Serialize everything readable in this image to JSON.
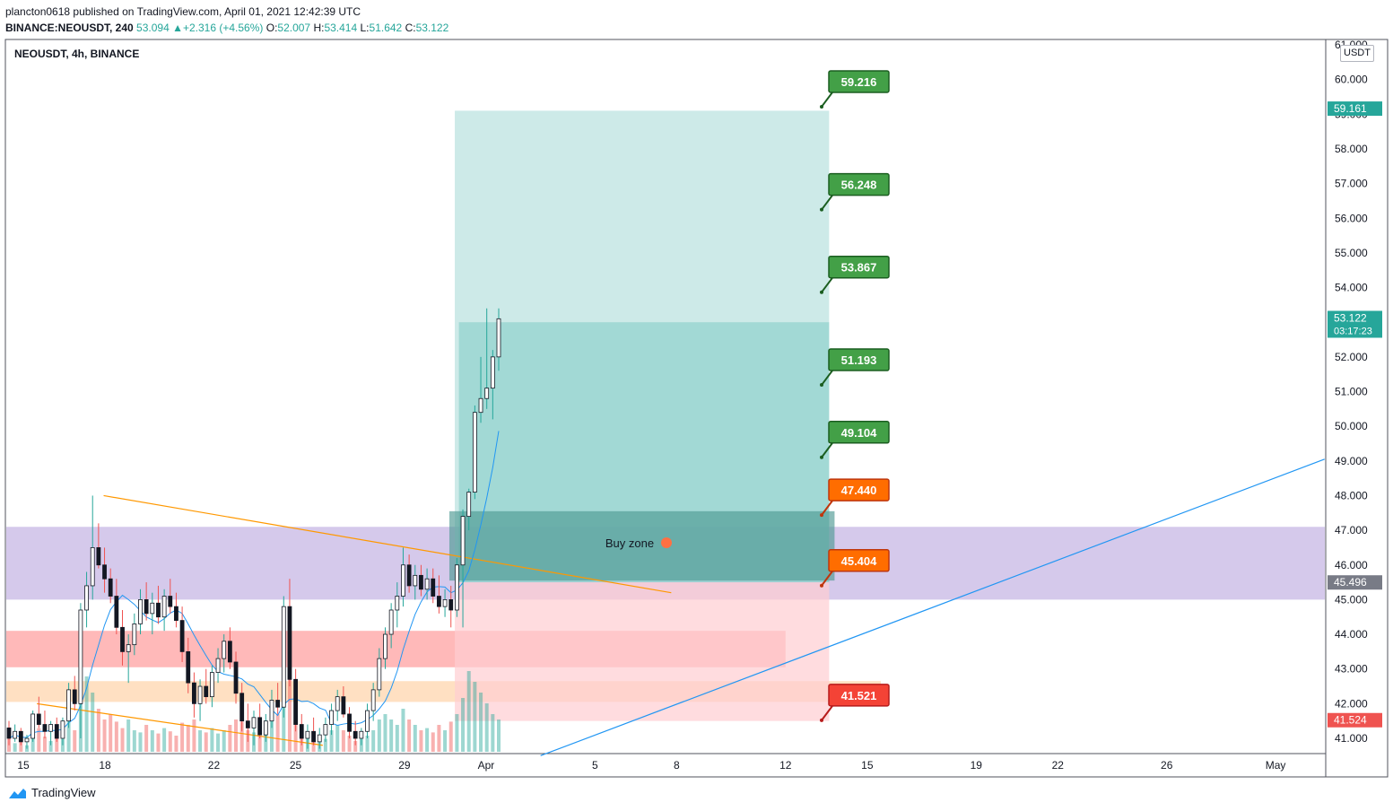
{
  "header": {
    "publisher_line": "plancton0618 published on TradingView.com, April 01, 2021 12:42:39 UTC",
    "symbol_interval": "BINANCE:NEOUSDT, 240",
    "last": "53.094",
    "change_arrow": "▲",
    "change": "+2.316 (+4.56%)",
    "o_label": "O:",
    "o": "52.007",
    "h_label": "H:",
    "h": "53.414",
    "l_label": "L:",
    "l": "51.642",
    "c_label": "C:",
    "c": "53.122"
  },
  "chart_title": "NEOUSDT, 4h, BINANCE",
  "currency": "USDT",
  "footer_brand": "TradingView",
  "chart_data": {
    "type": "candlestick",
    "symbol": "NEOUSDT",
    "interval": "4h",
    "exchange": "BINANCE",
    "ylim": [
      40.7,
      61.0
    ],
    "y_ticks": [
      "41.000",
      "42.000",
      "43.000",
      "44.000",
      "45.000",
      "46.000",
      "47.000",
      "48.000",
      "49.000",
      "50.000",
      "51.000",
      "52.000",
      "53.000",
      "54.000",
      "55.000",
      "56.000",
      "57.000",
      "58.000",
      "59.000",
      "60.000",
      "61.000"
    ],
    "x_ticks": [
      {
        "label": "15",
        "day": 15
      },
      {
        "label": "18",
        "day": 18
      },
      {
        "label": "22",
        "day": 22
      },
      {
        "label": "25",
        "day": 25
      },
      {
        "label": "29",
        "day": 29
      },
      {
        "label": "Apr",
        "day": 32
      },
      {
        "label": "5",
        "day": 36
      },
      {
        "label": "8",
        "day": 39
      },
      {
        "label": "12",
        "day": 43
      },
      {
        "label": "15",
        "day": 46
      },
      {
        "label": "19",
        "day": 50
      },
      {
        "label": "22",
        "day": 53
      },
      {
        "label": "26",
        "day": 57
      },
      {
        "label": "May",
        "day": 61
      }
    ],
    "price_badges": [
      {
        "value": "59.161",
        "price": 59.161,
        "color": "#26a69a"
      },
      {
        "value": "53.122",
        "countdown": "03:17:23",
        "price": 53.122,
        "color": "#26a69a"
      },
      {
        "value": "45.496",
        "price": 45.496,
        "color": "#787b86"
      },
      {
        "value": "41.524",
        "price": 41.524,
        "color": "#ef5350"
      }
    ],
    "targets": [
      {
        "value": "59.216",
        "price": 59.216,
        "color": "#43a047",
        "border": "#1b5e20"
      },
      {
        "value": "56.248",
        "price": 56.248,
        "color": "#43a047",
        "border": "#1b5e20"
      },
      {
        "value": "53.867",
        "price": 53.867,
        "color": "#43a047",
        "border": "#1b5e20"
      },
      {
        "value": "51.193",
        "price": 51.193,
        "color": "#43a047",
        "border": "#1b5e20"
      },
      {
        "value": "49.104",
        "price": 49.104,
        "color": "#43a047",
        "border": "#1b5e20"
      },
      {
        "value": "47.440",
        "price": 47.44,
        "color": "#ff6d00",
        "border": "#bf360c"
      },
      {
        "value": "45.404",
        "price": 45.404,
        "color": "#ff6d00",
        "border": "#bf360c"
      },
      {
        "value": "41.521",
        "price": 41.521,
        "color": "#f44336",
        "border": "#b71c1c"
      }
    ],
    "zones": [
      {
        "name": "purple-zone",
        "y1": 45.0,
        "y2": 47.1,
        "x1": 14,
        "x2": 63,
        "color": "#b39ddb",
        "opacity": 0.55
      },
      {
        "name": "red-zone",
        "y1": 43.05,
        "y2": 44.1,
        "x1": 14,
        "x2": 43,
        "color": "#ff8a8a",
        "opacity": 0.6
      },
      {
        "name": "orange-zone",
        "y1": 42.05,
        "y2": 42.65,
        "x1": 14,
        "x2": 46.5,
        "color": "#ffcc99",
        "opacity": 0.6
      },
      {
        "name": "target-zone-light",
        "y1": 45.5,
        "y2": 59.1,
        "x1": 30.85,
        "x2": 44.6,
        "color": "#b2dfdb",
        "opacity": 0.65
      },
      {
        "name": "target-zone-dark",
        "y1": 45.5,
        "y2": 53.0,
        "x1": 31.0,
        "x2": 44.6,
        "color": "#80cbc4",
        "opacity": 0.55
      },
      {
        "name": "buy-zone-box",
        "y1": 45.55,
        "y2": 47.55,
        "x1": 30.65,
        "x2": 44.8,
        "color": "#4f9a94",
        "opacity": 0.65
      },
      {
        "name": "stop-zone",
        "y1": 41.5,
        "y2": 45.5,
        "x1": 30.85,
        "x2": 44.6,
        "color": "#ffcdd2",
        "opacity": 0.7
      }
    ],
    "buy_zone_label": "Buy zone",
    "lines": [
      {
        "name": "orange-trendline",
        "x1": 17.95,
        "y1": 48.0,
        "x2": 38.8,
        "y2": 45.2,
        "color": "#ff9800"
      },
      {
        "name": "orange-lower-trendline",
        "x1": 15.5,
        "y1": 42.0,
        "x2": 26.0,
        "y2": 40.8,
        "color": "#ff9800"
      },
      {
        "name": "blue-trendline",
        "x1": 34.0,
        "y1": 40.5,
        "x2": 62.8,
        "y2": 49.05,
        "color": "#2196f3"
      }
    ],
    "candles": [
      {
        "o": 41.3,
        "h": 41.5,
        "l": 40.8,
        "c": 41.0
      },
      {
        "o": 41.0,
        "h": 41.4,
        "l": 40.9,
        "c": 41.2
      },
      {
        "o": 41.2,
        "h": 41.3,
        "l": 40.8,
        "c": 40.9
      },
      {
        "o": 40.9,
        "h": 41.1,
        "l": 40.7,
        "c": 41.0
      },
      {
        "o": 41.0,
        "h": 41.8,
        "l": 40.9,
        "c": 41.7
      },
      {
        "o": 41.7,
        "h": 42.2,
        "l": 41.3,
        "c": 41.4
      },
      {
        "o": 41.4,
        "h": 41.8,
        "l": 41.0,
        "c": 41.2
      },
      {
        "o": 41.2,
        "h": 41.5,
        "l": 40.8,
        "c": 41.4
      },
      {
        "o": 41.4,
        "h": 41.6,
        "l": 40.9,
        "c": 41.0
      },
      {
        "o": 41.0,
        "h": 41.6,
        "l": 40.8,
        "c": 41.5
      },
      {
        "o": 41.5,
        "h": 42.6,
        "l": 41.3,
        "c": 42.4
      },
      {
        "o": 42.4,
        "h": 42.8,
        "l": 41.8,
        "c": 42.0
      },
      {
        "o": 42.0,
        "h": 44.9,
        "l": 41.0,
        "c": 44.7
      },
      {
        "o": 44.7,
        "h": 45.8,
        "l": 44.2,
        "c": 45.4
      },
      {
        "o": 45.4,
        "h": 48.0,
        "l": 45.0,
        "c": 46.5
      },
      {
        "o": 46.5,
        "h": 47.2,
        "l": 45.9,
        "c": 46.0
      },
      {
        "o": 46.0,
        "h": 46.5,
        "l": 45.2,
        "c": 45.6
      },
      {
        "o": 45.6,
        "h": 45.9,
        "l": 44.9,
        "c": 45.1
      },
      {
        "o": 45.1,
        "h": 45.6,
        "l": 44.0,
        "c": 44.2
      },
      {
        "o": 44.2,
        "h": 44.7,
        "l": 43.1,
        "c": 43.5
      },
      {
        "o": 43.5,
        "h": 44.0,
        "l": 42.6,
        "c": 43.7
      },
      {
        "o": 43.7,
        "h": 44.6,
        "l": 43.4,
        "c": 44.3
      },
      {
        "o": 44.3,
        "h": 45.3,
        "l": 44.0,
        "c": 45.0
      },
      {
        "o": 45.0,
        "h": 45.5,
        "l": 44.4,
        "c": 44.6
      },
      {
        "o": 44.6,
        "h": 45.2,
        "l": 44.0,
        "c": 44.9
      },
      {
        "o": 44.9,
        "h": 45.4,
        "l": 44.3,
        "c": 44.5
      },
      {
        "o": 44.5,
        "h": 45.3,
        "l": 44.1,
        "c": 45.1
      },
      {
        "o": 45.1,
        "h": 45.6,
        "l": 44.6,
        "c": 44.8
      },
      {
        "o": 44.8,
        "h": 45.2,
        "l": 44.2,
        "c": 44.4
      },
      {
        "o": 44.4,
        "h": 44.8,
        "l": 43.2,
        "c": 43.5
      },
      {
        "o": 43.5,
        "h": 43.9,
        "l": 42.3,
        "c": 42.6
      },
      {
        "o": 42.6,
        "h": 42.9,
        "l": 41.6,
        "c": 42.0
      },
      {
        "o": 42.0,
        "h": 42.7,
        "l": 41.5,
        "c": 42.5
      },
      {
        "o": 42.5,
        "h": 43.0,
        "l": 42.0,
        "c": 42.2
      },
      {
        "o": 42.2,
        "h": 43.1,
        "l": 41.9,
        "c": 42.9
      },
      {
        "o": 42.9,
        "h": 43.6,
        "l": 42.6,
        "c": 43.3
      },
      {
        "o": 43.3,
        "h": 44.0,
        "l": 42.9,
        "c": 43.8
      },
      {
        "o": 43.8,
        "h": 44.2,
        "l": 43.0,
        "c": 43.2
      },
      {
        "o": 43.2,
        "h": 43.5,
        "l": 42.0,
        "c": 42.3
      },
      {
        "o": 42.3,
        "h": 42.6,
        "l": 41.2,
        "c": 41.5
      },
      {
        "o": 41.5,
        "h": 42.0,
        "l": 40.9,
        "c": 41.3
      },
      {
        "o": 41.3,
        "h": 41.8,
        "l": 40.8,
        "c": 41.6
      },
      {
        "o": 41.6,
        "h": 42.0,
        "l": 41.0,
        "c": 41.1
      },
      {
        "o": 41.1,
        "h": 41.7,
        "l": 40.9,
        "c": 41.5
      },
      {
        "o": 41.5,
        "h": 42.4,
        "l": 41.3,
        "c": 42.1
      },
      {
        "o": 42.1,
        "h": 42.6,
        "l": 41.7,
        "c": 41.9
      },
      {
        "o": 41.9,
        "h": 45.1,
        "l": 41.6,
        "c": 44.8
      },
      {
        "o": 44.8,
        "h": 45.6,
        "l": 42.5,
        "c": 42.7
      },
      {
        "o": 42.7,
        "h": 43.0,
        "l": 41.2,
        "c": 41.4
      },
      {
        "o": 41.4,
        "h": 41.7,
        "l": 40.8,
        "c": 41.0
      },
      {
        "o": 41.0,
        "h": 41.4,
        "l": 40.7,
        "c": 41.2
      },
      {
        "o": 41.2,
        "h": 41.6,
        "l": 40.8,
        "c": 40.9
      },
      {
        "o": 40.9,
        "h": 41.3,
        "l": 40.7,
        "c": 41.1
      },
      {
        "o": 41.1,
        "h": 41.6,
        "l": 40.9,
        "c": 41.4
      },
      {
        "o": 41.4,
        "h": 42.0,
        "l": 41.1,
        "c": 41.8
      },
      {
        "o": 41.8,
        "h": 42.4,
        "l": 41.5,
        "c": 42.2
      },
      {
        "o": 42.2,
        "h": 42.5,
        "l": 41.6,
        "c": 41.7
      },
      {
        "o": 41.7,
        "h": 41.9,
        "l": 41.0,
        "c": 41.2
      },
      {
        "o": 41.2,
        "h": 41.5,
        "l": 40.8,
        "c": 41.0
      },
      {
        "o": 41.0,
        "h": 41.3,
        "l": 40.8,
        "c": 41.2
      },
      {
        "o": 41.2,
        "h": 42.0,
        "l": 41.0,
        "c": 41.8
      },
      {
        "o": 41.8,
        "h": 42.6,
        "l": 41.5,
        "c": 42.4
      },
      {
        "o": 42.4,
        "h": 43.6,
        "l": 42.2,
        "c": 43.3
      },
      {
        "o": 43.3,
        "h": 44.2,
        "l": 43.0,
        "c": 44.0
      },
      {
        "o": 44.0,
        "h": 44.9,
        "l": 43.6,
        "c": 44.7
      },
      {
        "o": 44.7,
        "h": 45.5,
        "l": 44.2,
        "c": 45.1
      },
      {
        "o": 45.1,
        "h": 46.5,
        "l": 44.8,
        "c": 46.0
      },
      {
        "o": 46.0,
        "h": 46.3,
        "l": 45.2,
        "c": 45.4
      },
      {
        "o": 45.4,
        "h": 46.0,
        "l": 45.0,
        "c": 45.7
      },
      {
        "o": 45.7,
        "h": 46.0,
        "l": 45.1,
        "c": 45.3
      },
      {
        "o": 45.3,
        "h": 45.9,
        "l": 45.0,
        "c": 45.6
      },
      {
        "o": 45.6,
        "h": 45.9,
        "l": 44.9,
        "c": 45.1
      },
      {
        "o": 45.1,
        "h": 45.7,
        "l": 44.6,
        "c": 44.8
      },
      {
        "o": 44.8,
        "h": 45.3,
        "l": 44.5,
        "c": 45.0
      },
      {
        "o": 45.0,
        "h": 45.4,
        "l": 44.2,
        "c": 44.7
      },
      {
        "o": 44.7,
        "h": 46.2,
        "l": 44.5,
        "c": 46.0
      },
      {
        "o": 46.0,
        "h": 47.6,
        "l": 44.2,
        "c": 47.4
      },
      {
        "o": 47.4,
        "h": 48.2,
        "l": 47.0,
        "c": 48.1
      },
      {
        "o": 48.1,
        "h": 50.6,
        "l": 47.9,
        "c": 50.4
      },
      {
        "o": 50.4,
        "h": 52.0,
        "l": 50.1,
        "c": 50.8
      },
      {
        "o": 50.8,
        "h": 53.4,
        "l": 50.5,
        "c": 51.1
      },
      {
        "o": 51.1,
        "h": 52.2,
        "l": 50.2,
        "c": 52.0
      },
      {
        "o": 52.0,
        "h": 53.4,
        "l": 51.6,
        "c": 53.1
      }
    ],
    "volume": [
      0.12,
      0.08,
      0.1,
      0.06,
      0.15,
      0.22,
      0.14,
      0.1,
      0.18,
      0.12,
      0.3,
      0.2,
      1.0,
      0.7,
      0.55,
      0.4,
      0.3,
      0.35,
      0.28,
      0.22,
      0.3,
      0.2,
      0.18,
      0.25,
      0.2,
      0.17,
      0.22,
      0.19,
      0.15,
      0.27,
      0.25,
      0.3,
      0.2,
      0.18,
      0.22,
      0.17,
      0.2,
      0.25,
      0.3,
      0.28,
      0.2,
      0.18,
      0.15,
      0.2,
      0.3,
      0.35,
      0.6,
      0.7,
      0.4,
      0.25,
      0.15,
      0.1,
      0.1,
      0.12,
      0.2,
      0.25,
      0.2,
      0.15,
      0.1,
      0.12,
      0.15,
      0.2,
      0.3,
      0.35,
      0.3,
      0.25,
      0.4,
      0.3,
      0.25,
      0.2,
      0.22,
      0.18,
      0.25,
      0.2,
      0.28,
      0.35,
      0.5,
      0.75,
      0.65,
      0.55,
      0.45,
      0.35,
      0.3
    ],
    "grid": false
  }
}
